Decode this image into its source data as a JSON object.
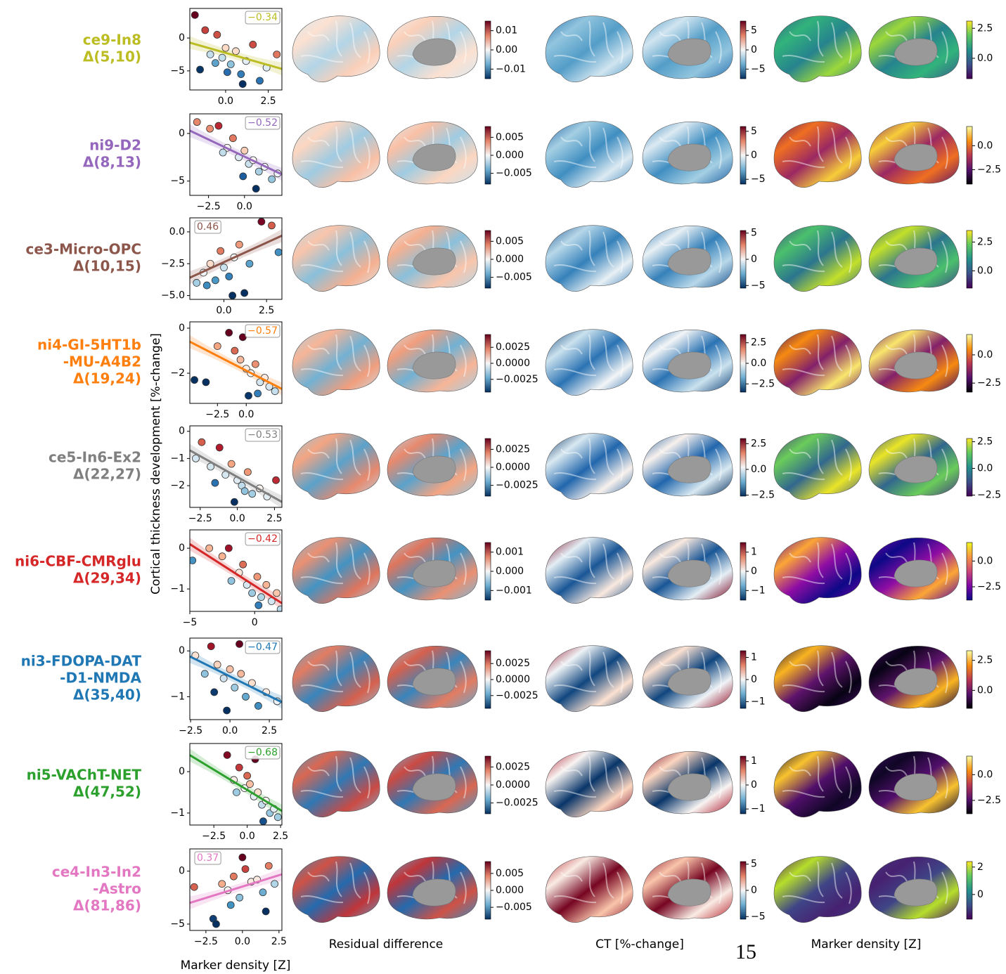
{
  "y_label": "Cortical thickness development [%-change]",
  "x_label": "Marker density [Z]",
  "column_titles": [
    "Residual difference",
    "CT [%-change]",
    "Marker density [Z]"
  ],
  "page_number": "15",
  "chart_data": [
    {
      "type": "scatter",
      "label_lines": [
        "ce9-In8",
        "Δ(5,10)"
      ],
      "color": "#bcbd22",
      "annotation": "−0.34",
      "annotation_corner": "upper right",
      "xlim": [
        -2.1,
        3.3
      ],
      "xticks": [
        {
          "value": 0,
          "label": "0.0"
        },
        2.5
      ],
      "ylim": [
        -7.9,
        4.5
      ],
      "yticks": [
        {
          "value": -5,
          "label": "−5"
        },
        0
      ],
      "x": [
        -1.8,
        -1.2,
        -0.9,
        -0.5,
        -0.2,
        0,
        0.3,
        0.6,
        0.9,
        1.2,
        1.6,
        2.0,
        2.4,
        3.0,
        -1.5,
        0.1,
        1.0,
        -0.6
      ],
      "values": [
        3.5,
        1.2,
        -2.5,
        0.5,
        -3.0,
        -1.5,
        -4.0,
        -2.0,
        -5.5,
        -3.5,
        -1.0,
        -6.5,
        -4.5,
        -2.5,
        -4.8,
        -5.2,
        -7.0,
        -3.8
      ],
      "fit_x": [
        -2.1,
        3.3
      ],
      "fit_y": [
        -0.7,
        -4.7
      ],
      "colorbars": [
        {
          "cmap": "RdBu_r",
          "lim": [
            -0.015,
            0.015
          ],
          "ticks": [
            {
              "value": -0.01,
              "label": "−0.01"
            },
            {
              "value": 0,
              "label": "0.00"
            },
            0.01
          ]
        },
        {
          "cmap": "RdBu_r",
          "lim": [
            -7.5,
            7.5
          ],
          "ticks": [
            {
              "value": -5,
              "label": "−5"
            },
            0,
            5
          ]
        },
        {
          "cmap": "viridis",
          "lim": [
            -1.7,
            3.1
          ],
          "ticks": [
            {
              "value": 0,
              "label": "0.0"
            },
            2.5
          ]
        }
      ]
    },
    {
      "type": "scatter",
      "label_lines": [
        "ni9-D2",
        "Δ(8,13)"
      ],
      "color": "#9467bd",
      "annotation": "−0.52",
      "annotation_corner": "upper right",
      "xlim": [
        -3.8,
        2.6
      ],
      "xticks": [
        {
          "value": -2.5,
          "label": "−2.5"
        },
        {
          "value": 0,
          "label": "0.0"
        }
      ],
      "ylim": [
        -6.5,
        2.06
      ],
      "yticks": [
        {
          "value": -5,
          "label": "−5"
        },
        0
      ],
      "x": [
        -3.3,
        -2.4,
        -1.8,
        -1.2,
        -0.8,
        -0.4,
        0,
        0.3,
        0.6,
        1.0,
        1.4,
        1.9,
        2.3,
        -0.1,
        0.8,
        -1.5
      ],
      "values": [
        1.2,
        0.5,
        0.8,
        -1.5,
        -0.5,
        -2.5,
        -1.8,
        -3.2,
        -2.8,
        -4.0,
        -3.5,
        -4.8,
        -4.2,
        -4.5,
        -5.8,
        -2.0
      ],
      "fit_x": [
        -3.8,
        2.6
      ],
      "fit_y": [
        0.3,
        -4.3
      ],
      "colorbars": [
        {
          "cmap": "RdBu_r",
          "lim": [
            -0.008,
            0.008
          ],
          "ticks": [
            {
              "value": -0.005,
              "label": "−0.005"
            },
            {
              "value": 0,
              "label": "0.000"
            },
            0.005
          ]
        },
        {
          "cmap": "RdBu_r",
          "lim": [
            -6,
            6
          ],
          "ticks": [
            {
              "value": -5,
              "label": "−5"
            },
            0,
            5
          ]
        },
        {
          "cmap": "inferno",
          "lim": [
            -4,
            2
          ],
          "ticks": [
            {
              "value": -2.5,
              "label": "−2.5"
            },
            {
              "value": 0,
              "label": "0.0"
            }
          ]
        }
      ]
    },
    {
      "type": "scatter",
      "label_lines": [
        "ce3-Micro-OPC",
        "Δ(10,15)"
      ],
      "color": "#8c564b",
      "annotation": "0.46",
      "annotation_corner": "upper left",
      "xlim": [
        -2.0,
        3.4
      ],
      "xticks": [
        {
          "value": 0,
          "label": "0.0"
        },
        2.5
      ],
      "ylim": [
        -5.3,
        1.1
      ],
      "yticks": [
        {
          "value": -5,
          "label": "−5.0"
        },
        {
          "value": -2.5,
          "label": "−2.5"
        },
        {
          "value": 0,
          "label": "0.0"
        }
      ],
      "x": [
        -1.6,
        -1.2,
        -0.8,
        -0.5,
        -0.2,
        0,
        0.3,
        0.6,
        0.9,
        1.2,
        1.5,
        2.2,
        2.8,
        3.2,
        0.5,
        -1.0
      ],
      "values": [
        -4.0,
        -3.2,
        -2.5,
        -3.8,
        -1.5,
        -2.8,
        -3.5,
        -2.0,
        -1.0,
        -4.8,
        -2.5,
        0.8,
        0.5,
        -1.6,
        -5.0,
        -4.2
      ],
      "fit_x": [
        -2.0,
        3.4
      ],
      "fit_y": [
        -3.6,
        -0.3
      ],
      "colorbars": [
        {
          "cmap": "RdBu_r",
          "lim": [
            -0.008,
            0.008
          ],
          "ticks": [
            {
              "value": -0.005,
              "label": "−0.005"
            },
            {
              "value": 0,
              "label": "0.000"
            },
            0.005
          ]
        },
        {
          "cmap": "RdBu_r",
          "lim": [
            -5.5,
            5.5
          ],
          "ticks": [
            {
              "value": -5,
              "label": "−5"
            },
            0,
            5
          ]
        },
        {
          "cmap": "viridis",
          "lim": [
            -1.5,
            3.5
          ],
          "ticks": [
            {
              "value": 0,
              "label": "0.0"
            },
            2.5
          ]
        }
      ]
    },
    {
      "type": "scatter",
      "label_lines": [
        "ni4-GI-5HT1b",
        "-MU-A4B2",
        "Δ(19,24)"
      ],
      "color": "#ff7f0e",
      "annotation": "−0.57",
      "annotation_corner": "upper right",
      "xlim": [
        -4.9,
        3.1
      ],
      "xticks": [
        {
          "value": -2.5,
          "label": "−2.5"
        },
        {
          "value": 0,
          "label": "0.0"
        }
      ],
      "ylim": [
        -3.34,
        0.28
      ],
      "yticks": [
        {
          "value": -2,
          "label": "−2"
        },
        0
      ],
      "x": [
        -4.5,
        -3.5,
        -2.5,
        -1.5,
        -1.0,
        -0.5,
        0,
        0.4,
        0.8,
        1.2,
        1.6,
        2.0,
        2.5,
        0.2,
        -0.3,
        1.0
      ],
      "values": [
        -2.3,
        -2.4,
        -0.8,
        -0.2,
        -1.0,
        -1.4,
        -1.8,
        -2.0,
        -1.6,
        -2.4,
        -2.2,
        -2.6,
        -2.8,
        -3.0,
        -0.4,
        -2.9
      ],
      "fit_x": [
        -4.9,
        3.1
      ],
      "fit_y": [
        -0.6,
        -2.7
      ],
      "colorbars": [
        {
          "cmap": "RdBu_r",
          "lim": [
            -0.0045,
            0.0045
          ],
          "ticks": [
            {
              "value": -0.0025,
              "label": "−0.0025"
            },
            {
              "value": 0,
              "label": "0.0000"
            },
            0.0025
          ]
        },
        {
          "cmap": "RdBu_r",
          "lim": [
            -3.5,
            3.5
          ],
          "ticks": [
            {
              "value": -2.5,
              "label": "−2.5"
            },
            {
              "value": 0,
              "label": "0.0"
            },
            2.5
          ]
        },
        {
          "cmap": "inferno",
          "lim": [
            -3.3,
            1.8
          ],
          "ticks": [
            {
              "value": -2.5,
              "label": "−2.5"
            },
            {
              "value": 0,
              "label": "0.0"
            }
          ]
        }
      ]
    },
    {
      "type": "scatter",
      "label_lines": [
        "ce5-In6-Ex2",
        "Δ(22,27)"
      ],
      "color": "#7f7f7f",
      "annotation": "−0.53",
      "annotation_corner": "upper right",
      "xlim": [
        -3.2,
        3.0
      ],
      "xticks": [
        {
          "value": -2.5,
          "label": "−2.5"
        },
        {
          "value": 0,
          "label": "0.0"
        },
        2.5
      ],
      "ylim": [
        -2.8,
        0.2
      ],
      "yticks": [
        {
          "value": -2,
          "label": "−2"
        },
        {
          "value": -1,
          "label": "−1"
        },
        0
      ],
      "x": [
        -2.8,
        -2.4,
        -1.8,
        -1.2,
        -0.8,
        -0.4,
        0,
        0.3,
        0.7,
        1.0,
        1.5,
        2.0,
        2.6,
        -0.2,
        0.5,
        -1.5
      ],
      "values": [
        -1.0,
        -0.4,
        -1.3,
        -0.6,
        -1.6,
        -1.2,
        -1.8,
        -2.0,
        -1.5,
        -2.3,
        -2.1,
        -2.4,
        -1.8,
        -2.6,
        -2.2,
        -1.9
      ],
      "fit_x": [
        -3.2,
        3.0
      ],
      "fit_y": [
        -0.7,
        -2.6
      ],
      "colorbars": [
        {
          "cmap": "RdBu_r",
          "lim": [
            -0.004,
            0.004
          ],
          "ticks": [
            {
              "value": -0.0025,
              "label": "−0.0025"
            },
            {
              "value": 0,
              "label": "0.0000"
            },
            0.0025
          ]
        },
        {
          "cmap": "RdBu_r",
          "lim": [
            -2.6,
            3.0
          ],
          "ticks": [
            {
              "value": -2.5,
              "label": "−2.5"
            },
            {
              "value": 0,
              "label": "0.0"
            },
            2.5
          ]
        },
        {
          "cmap": "viridis",
          "lim": [
            -2.6,
            2.8
          ],
          "ticks": [
            {
              "value": -2.5,
              "label": "−2.5"
            },
            {
              "value": 0,
              "label": "0.0"
            },
            2.5
          ]
        }
      ]
    },
    {
      "type": "scatter",
      "label_lines": [
        "ni6-CBF-CMRglu",
        "Δ(29,34)"
      ],
      "color": "#d62728",
      "annotation": "−0.42",
      "annotation_corner": "upper right",
      "xlim": [
        -5.0,
        2.1
      ],
      "xticks": [
        {
          "value": -5,
          "label": "−5"
        },
        0
      ],
      "ylim": [
        -1.55,
        0.45
      ],
      "yticks": [
        {
          "value": -1,
          "label": "−1"
        },
        0
      ],
      "x": [
        -4.8,
        -3.5,
        -2.5,
        -1.8,
        -1.2,
        -0.6,
        -0.2,
        0.2,
        0.5,
        0.9,
        1.3,
        1.7,
        2.0,
        -0.9,
        0.3,
        -2.0
      ],
      "values": [
        -0.3,
        0,
        -0.2,
        -0.8,
        -0.6,
        -0.9,
        -1.1,
        -0.7,
        -1.2,
        -0.9,
        -1.3,
        -1.1,
        -1.5,
        -0.4,
        -1.4,
        0.0
      ],
      "fit_x": [
        -5.0,
        2.1
      ],
      "fit_y": [
        0.1,
        -1.35
      ],
      "colorbars": [
        {
          "cmap": "RdBu_r",
          "lim": [
            -0.0015,
            0.0015
          ],
          "ticks": [
            {
              "value": -0.001,
              "label": "−0.001"
            },
            {
              "value": 0,
              "label": "0.000"
            },
            0.001
          ]
        },
        {
          "cmap": "RdBu_r",
          "lim": [
            -1.5,
            1.5
          ],
          "ticks": [
            {
              "value": -1,
              "label": "−1"
            },
            0,
            1
          ]
        },
        {
          "cmap": "plasma",
          "lim": [
            -3.8,
            1.8
          ],
          "ticks": [
            {
              "value": -2.5,
              "label": "−2.5"
            },
            {
              "value": 0,
              "label": "0.0"
            }
          ]
        }
      ]
    },
    {
      "type": "scatter",
      "label_lines": [
        "ni3-FDOPA-DAT",
        "-D1-NMDA",
        "Δ(35,40)"
      ],
      "color": "#1f77b4",
      "annotation": "−0.47",
      "annotation_corner": "upper right",
      "xlim": [
        -2.55,
        3.3
      ],
      "xticks": [
        {
          "value": -2.5,
          "label": "−2.5"
        },
        {
          "value": 0,
          "label": "0.0"
        },
        2.5
      ],
      "ylim": [
        -1.5,
        0.28
      ],
      "yticks": [
        {
          "value": -1,
          "label": "−1"
        },
        0
      ],
      "x": [
        -2.2,
        -1.6,
        -1.2,
        -0.8,
        -0.4,
        0,
        0.3,
        0.7,
        1.0,
        1.4,
        1.8,
        2.3,
        3.0,
        -0.2,
        0.6,
        -1.0
      ],
      "values": [
        -0.1,
        -0.5,
        0.1,
        -0.3,
        -0.6,
        -0.4,
        -0.8,
        -0.5,
        -1.0,
        -0.7,
        -1.2,
        -0.9,
        -1.1,
        -1.3,
        0.15,
        -0.9
      ],
      "fit_x": [
        -2.55,
        3.3
      ],
      "fit_y": [
        -0.12,
        -1.12
      ],
      "colorbars": [
        {
          "cmap": "RdBu_r",
          "lim": [
            -0.0045,
            0.0045
          ],
          "ticks": [
            {
              "value": -0.0025,
              "label": "−0.0025"
            },
            {
              "value": 0,
              "label": "0.0000"
            },
            0.0025
          ]
        },
        {
          "cmap": "RdBu_r",
          "lim": [
            -1.3,
            1.3
          ],
          "ticks": [
            {
              "value": -1,
              "label": "−1"
            },
            0,
            1
          ]
        },
        {
          "cmap": "inferno",
          "lim": [
            -1.5,
            3.3
          ],
          "ticks": [
            {
              "value": 0,
              "label": "0.0"
            },
            2.5
          ]
        }
      ]
    },
    {
      "type": "scatter",
      "label_lines": [
        "ni5-VAChT-NET",
        "Δ(47,52)"
      ],
      "color": "#2ca02c",
      "annotation": "−0.68",
      "annotation_corner": "upper right",
      "xlim": [
        -4.3,
        2.6
      ],
      "xticks": [
        {
          "value": -2.5,
          "label": "−2.5"
        },
        {
          "value": 0,
          "label": "0.0"
        },
        2.5
      ],
      "ylim": [
        -1.29,
        0.68
      ],
      "yticks": [
        {
          "value": -1,
          "label": "−1"
        },
        0
      ],
      "x": [
        -1.5,
        -1.0,
        -0.6,
        -0.2,
        0.2,
        0.5,
        0.8,
        1.1,
        1.4,
        1.7,
        2.0,
        2.3,
        0,
        -0.8,
        1.2,
        0.6
      ],
      "values": [
        0.4,
        -0.2,
        0.1,
        -0.4,
        -0.3,
        -0.6,
        -0.5,
        -0.8,
        -0.7,
        -1.0,
        -0.9,
        -1.1,
        -0.1,
        -0.5,
        -1.2,
        0.3
      ],
      "fit_x": [
        -4.3,
        2.6
      ],
      "fit_y": [
        0.4,
        -0.95
      ],
      "colorbars": [
        {
          "cmap": "RdBu_r",
          "lim": [
            -0.004,
            0.004
          ],
          "ticks": [
            {
              "value": -0.0025,
              "label": "−0.0025"
            },
            {
              "value": 0,
              "label": "0.0000"
            },
            0.0025
          ]
        },
        {
          "cmap": "RdBu_r",
          "lim": [
            -1.2,
            1.2
          ],
          "ticks": [
            {
              "value": -1,
              "label": "−1"
            },
            0,
            1
          ]
        },
        {
          "cmap": "inferno",
          "lim": [
            -3.8,
            1.8
          ],
          "ticks": [
            {
              "value": -2.5,
              "label": "−2.5"
            },
            {
              "value": 0,
              "label": "0.0"
            }
          ]
        }
      ]
    },
    {
      "type": "scatter",
      "label_lines": [
        "ce4-In3-In2",
        "-Astro",
        "Δ(81,86)"
      ],
      "color": "#e377c2",
      "annotation": "0.37",
      "annotation_corner": "upper left",
      "xlim": [
        -3.6,
        2.7
      ],
      "xticks": [
        {
          "value": -2.5,
          "label": "−2.5"
        },
        {
          "value": 0,
          "label": "0.0"
        },
        2.5
      ],
      "ylim": [
        -5.6,
        2.1
      ],
      "yticks": [
        {
          "value": -5,
          "label": "−5"
        },
        0
      ],
      "x": [
        -3.3,
        -2.0,
        -1.8,
        -1.4,
        -1.0,
        -0.6,
        -0.2,
        0.2,
        0.6,
        1.0,
        1.4,
        1.8,
        2.2,
        0,
        -0.8,
        1.6
      ],
      "values": [
        -1.5,
        -4.5,
        -5.0,
        -1.2,
        -1.8,
        -0.5,
        -2.5,
        0.2,
        -1.0,
        -0.8,
        -2.0,
        0.5,
        -1.2,
        1.3,
        -3.2,
        -3.8
      ],
      "fit_x": [
        -3.6,
        2.7
      ],
      "fit_y": [
        -3.0,
        -0.3
      ],
      "colorbars": [
        {
          "cmap": "RdBu_r",
          "lim": [
            -0.0085,
            0.0085
          ],
          "ticks": [
            {
              "value": -0.005,
              "label": "−0.005"
            },
            {
              "value": 0,
              "label": "0.000"
            },
            0.005
          ]
        },
        {
          "cmap": "RdBu_r",
          "lim": [
            -5.5,
            5.5
          ],
          "ticks": [
            {
              "value": -5,
              "label": "−5"
            },
            0,
            5
          ]
        },
        {
          "cmap": "viridis",
          "lim": [
            -1.8,
            2.4
          ],
          "ticks": [
            {
              "value": 0,
              "label": "0"
            },
            2
          ]
        }
      ]
    }
  ]
}
